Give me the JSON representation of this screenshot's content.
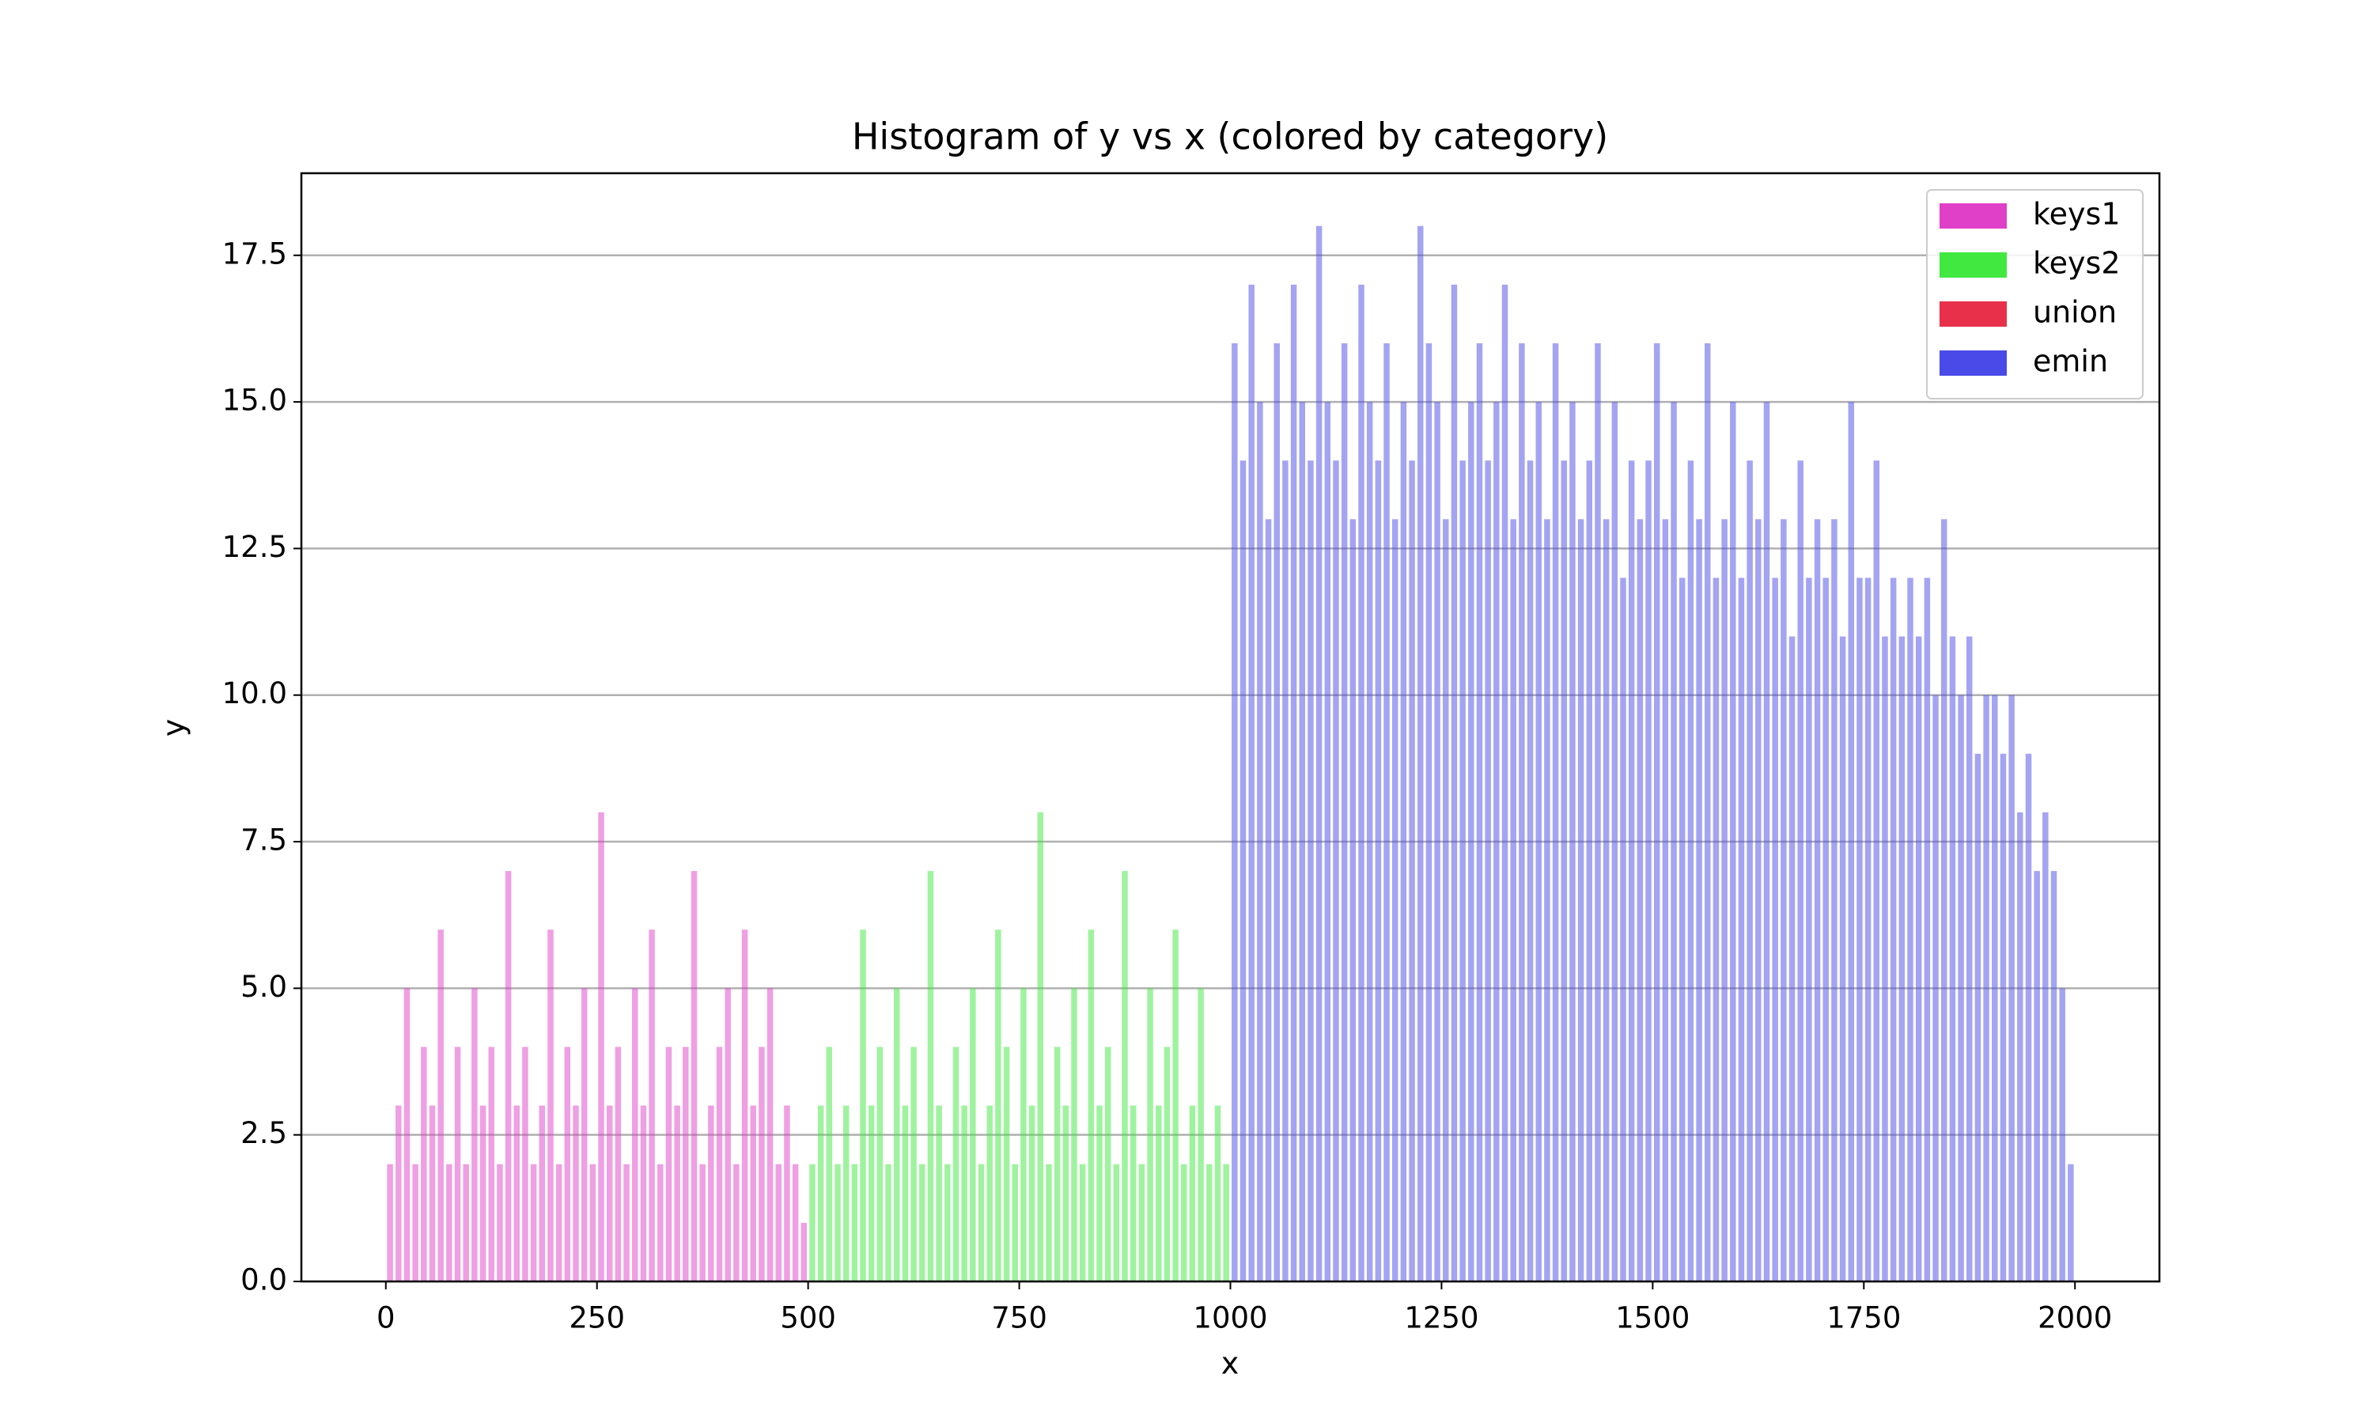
{
  "chart_data": {
    "type": "histogram",
    "title": "Histogram of y vs x (colored by category)",
    "x_label": "x",
    "y_label": "y",
    "xlim": [
      -100,
      2100
    ],
    "ylim": [
      0,
      18.9
    ],
    "xticks": [
      0,
      250,
      500,
      750,
      1000,
      1250,
      1500,
      1750,
      2000
    ],
    "yticks": [
      {
        "value": 0,
        "label": "0.0"
      },
      {
        "value": 2.5,
        "label": "2.5"
      },
      {
        "value": 5,
        "label": "5.0"
      },
      {
        "value": 7.5,
        "label": "7.5"
      },
      {
        "value": 10,
        "label": "10.0"
      },
      {
        "value": 12.5,
        "label": "12.5"
      },
      {
        "value": 15,
        "label": "15.0"
      },
      {
        "value": 17.5,
        "label": "17.5"
      }
    ],
    "grid": true,
    "legend": "upper right",
    "series": [
      {
        "name": "keys1",
        "color": "#e040c8",
        "bins": [
          0,
          10,
          20,
          30,
          40,
          50,
          60,
          70,
          80,
          90,
          100,
          110,
          120,
          130,
          140,
          150,
          160,
          170,
          180,
          190,
          200,
          210,
          220,
          230,
          240,
          250,
          260,
          270,
          280,
          290,
          300,
          310,
          320,
          330,
          340,
          350,
          360,
          370,
          380,
          390,
          400,
          410,
          420,
          430,
          440,
          450,
          460,
          470,
          480,
          490,
          500
        ],
        "values": [
          2,
          3,
          5,
          2,
          4,
          3,
          6,
          2,
          4,
          2,
          5,
          3,
          4,
          2,
          7,
          3,
          4,
          2,
          3,
          6,
          2,
          4,
          3,
          5,
          2,
          8,
          3,
          4,
          2,
          5,
          3,
          6,
          2,
          4,
          3,
          4,
          7,
          2,
          3,
          4,
          5,
          2,
          6,
          3,
          4,
          5,
          2,
          3,
          2,
          1
        ]
      },
      {
        "name": "keys2",
        "color": "#40e840",
        "bins": [
          500,
          510,
          520,
          530,
          540,
          550,
          560,
          570,
          580,
          590,
          600,
          610,
          620,
          630,
          640,
          650,
          660,
          670,
          680,
          690,
          700,
          710,
          720,
          730,
          740,
          750,
          760,
          770,
          780,
          790,
          800,
          810,
          820,
          830,
          840,
          850,
          860,
          870,
          880,
          890,
          900,
          910,
          920,
          930,
          940,
          950,
          960,
          970,
          980,
          990,
          1000
        ],
        "values": [
          2,
          3,
          4,
          2,
          3,
          2,
          6,
          3,
          4,
          2,
          5,
          3,
          4,
          2,
          7,
          3,
          2,
          4,
          3,
          5,
          2,
          3,
          6,
          4,
          2,
          5,
          3,
          8,
          2,
          4,
          3,
          5,
          2,
          6,
          3,
          4,
          2,
          7,
          3,
          2,
          5,
          3,
          4,
          6,
          2,
          3,
          5,
          2,
          3,
          2
        ]
      },
      {
        "name": "union",
        "color": "#e8304a",
        "values": []
      },
      {
        "name": "emin",
        "color": "#4a4ae8",
        "bins": [
          1000,
          1010,
          1020,
          1030,
          1040,
          1050,
          1060,
          1070,
          1080,
          1090,
          1100,
          1110,
          1120,
          1130,
          1140,
          1150,
          1160,
          1170,
          1180,
          1190,
          1200,
          1210,
          1220,
          1230,
          1240,
          1250,
          1260,
          1270,
          1280,
          1290,
          1300,
          1310,
          1320,
          1330,
          1340,
          1350,
          1360,
          1370,
          1380,
          1390,
          1400,
          1410,
          1420,
          1430,
          1440,
          1450,
          1460,
          1470,
          1480,
          1490,
          1500,
          1510,
          1520,
          1530,
          1540,
          1550,
          1560,
          1570,
          1580,
          1590,
          1600,
          1610,
          1620,
          1630,
          1640,
          1650,
          1660,
          1670,
          1680,
          1690,
          1700,
          1710,
          1720,
          1730,
          1740,
          1750,
          1760,
          1770,
          1780,
          1790,
          1800,
          1810,
          1820,
          1830,
          1840,
          1850,
          1860,
          1870,
          1880,
          1890,
          1900,
          1910,
          1920,
          1930,
          1940,
          1950,
          1960,
          1970,
          1980,
          1990,
          2000
        ],
        "values": [
          16,
          14,
          17,
          15,
          13,
          16,
          14,
          17,
          15,
          14,
          18,
          15,
          14,
          16,
          13,
          17,
          15,
          14,
          16,
          13,
          15,
          14,
          18,
          16,
          15,
          13,
          17,
          14,
          15,
          16,
          14,
          15,
          17,
          13,
          16,
          14,
          15,
          13,
          16,
          14,
          15,
          13,
          14,
          16,
          13,
          15,
          12,
          14,
          13,
          14,
          16,
          13,
          15,
          12,
          14,
          13,
          16,
          12,
          13,
          15,
          12,
          14,
          13,
          15,
          12,
          13,
          11,
          14,
          12,
          13,
          12,
          13,
          11,
          15,
          12,
          12,
          14,
          11,
          12,
          11,
          12,
          11,
          12,
          10,
          13,
          11,
          10,
          11,
          9,
          10,
          10,
          9,
          10,
          8,
          9,
          7,
          8,
          7,
          5,
          2
        ]
      }
    ]
  }
}
